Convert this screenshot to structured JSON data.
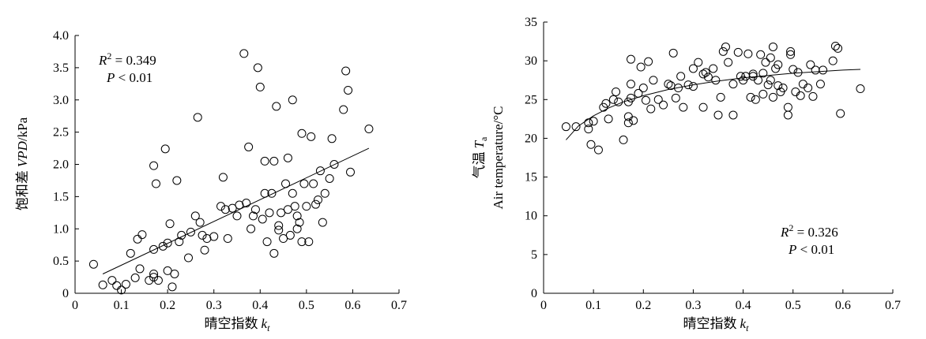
{
  "chart_data": [
    {
      "type": "scatter",
      "x_label_main": "晴空指数",
      "x_label_var": "k",
      "x_label_sub": "t",
      "y_label_main": "饱和差",
      "y_label_var": "VPD",
      "y_label_unit": "/kPa",
      "xlim": [
        0,
        0.7
      ],
      "ylim": [
        0,
        4.0
      ],
      "x_ticks": [
        "0",
        "0.1",
        "0.2",
        "0.3",
        "0.4",
        "0.5",
        "0.6",
        "0.7"
      ],
      "y_ticks": [
        "0",
        "0.5",
        "1.0",
        "1.5",
        "2.0",
        "2.5",
        "3.0",
        "3.5",
        "4.0"
      ],
      "x_tick_values": [
        0,
        0.1,
        0.2,
        0.3,
        0.4,
        0.5,
        0.6,
        0.7
      ],
      "y_tick_values": [
        0,
        0.5,
        1.0,
        1.5,
        2.0,
        2.5,
        3.0,
        3.5,
        4.0
      ],
      "r2_prefix": "R",
      "r2_sup": "2",
      "r2_text": " = 0.349",
      "p_text": "P",
      "p_value_text": " < 0.01",
      "fit": {
        "type": "linear",
        "x": [
          0.06,
          0.635
        ],
        "y": [
          0.3,
          2.25
        ]
      },
      "points": [
        [
          0.04,
          0.45
        ],
        [
          0.06,
          0.13
        ],
        [
          0.08,
          0.2
        ],
        [
          0.09,
          0.12
        ],
        [
          0.1,
          0.05
        ],
        [
          0.11,
          0.14
        ],
        [
          0.12,
          0.62
        ],
        [
          0.13,
          0.24
        ],
        [
          0.135,
          0.84
        ],
        [
          0.14,
          0.38
        ],
        [
          0.145,
          0.91
        ],
        [
          0.16,
          0.2
        ],
        [
          0.17,
          0.3
        ],
        [
          0.17,
          0.68
        ],
        [
          0.175,
          1.7
        ],
        [
          0.17,
          1.98
        ],
        [
          0.18,
          0.2
        ],
        [
          0.19,
          0.73
        ],
        [
          0.195,
          2.24
        ],
        [
          0.2,
          0.78
        ],
        [
          0.205,
          1.08
        ],
        [
          0.21,
          0.1
        ],
        [
          0.215,
          0.3
        ],
        [
          0.22,
          1.75
        ],
        [
          0.225,
          0.8
        ],
        [
          0.23,
          0.9
        ],
        [
          0.245,
          0.55
        ],
        [
          0.25,
          0.95
        ],
        [
          0.26,
          1.2
        ],
        [
          0.265,
          2.73
        ],
        [
          0.27,
          1.1
        ],
        [
          0.275,
          0.9
        ],
        [
          0.28,
          0.67
        ],
        [
          0.285,
          0.85
        ],
        [
          0.3,
          0.88
        ],
        [
          0.315,
          1.35
        ],
        [
          0.32,
          1.8
        ],
        [
          0.325,
          1.3
        ],
        [
          0.33,
          0.85
        ],
        [
          0.34,
          1.32
        ],
        [
          0.35,
          1.2
        ],
        [
          0.355,
          1.37
        ],
        [
          0.365,
          3.72
        ],
        [
          0.37,
          1.4
        ],
        [
          0.375,
          2.27
        ],
        [
          0.38,
          1.0
        ],
        [
          0.385,
          1.2
        ],
        [
          0.39,
          1.3
        ],
        [
          0.395,
          3.5
        ],
        [
          0.4,
          3.2
        ],
        [
          0.405,
          1.15
        ],
        [
          0.41,
          1.55
        ],
        [
          0.41,
          2.05
        ],
        [
          0.415,
          0.8
        ],
        [
          0.42,
          1.25
        ],
        [
          0.425,
          1.55
        ],
        [
          0.43,
          0.62
        ],
        [
          0.435,
          2.9
        ],
        [
          0.44,
          1.05
        ],
        [
          0.445,
          1.25
        ],
        [
          0.45,
          0.85
        ],
        [
          0.455,
          1.7
        ],
        [
          0.46,
          2.1
        ],
        [
          0.46,
          1.3
        ],
        [
          0.465,
          0.9
        ],
        [
          0.47,
          3.0
        ],
        [
          0.47,
          1.55
        ],
        [
          0.475,
          1.35
        ],
        [
          0.48,
          1.0
        ],
        [
          0.485,
          1.1
        ],
        [
          0.49,
          2.48
        ],
        [
          0.49,
          0.8
        ],
        [
          0.495,
          1.7
        ],
        [
          0.5,
          1.35
        ],
        [
          0.505,
          0.8
        ],
        [
          0.51,
          2.43
        ],
        [
          0.515,
          1.7
        ],
        [
          0.52,
          1.38
        ],
        [
          0.525,
          1.45
        ],
        [
          0.53,
          1.9
        ],
        [
          0.535,
          1.1
        ],
        [
          0.54,
          1.55
        ],
        [
          0.55,
          1.78
        ],
        [
          0.555,
          2.4
        ],
        [
          0.56,
          2.0
        ],
        [
          0.58,
          2.85
        ],
        [
          0.585,
          3.45
        ],
        [
          0.59,
          3.15
        ],
        [
          0.595,
          1.88
        ],
        [
          0.635,
          2.55
        ],
        [
          0.17,
          0.25
        ],
        [
          0.2,
          0.35
        ],
        [
          0.43,
          2.05
        ],
        [
          0.44,
          0.98
        ],
        [
          0.48,
          1.2
        ]
      ]
    },
    {
      "type": "scatter",
      "x_label_main": "晴空指数",
      "x_label_var": "k",
      "x_label_sub": "t",
      "y_label_main": "气温",
      "y_label_var": "T",
      "y_label_sub": "a",
      "y_label_en": "Air temperature/°C",
      "xlim": [
        0,
        0.7
      ],
      "ylim": [
        0,
        35
      ],
      "x_ticks": [
        "0",
        "0.1",
        "0.2",
        "0.3",
        "0.4",
        "0.5",
        "0.6",
        "0.7"
      ],
      "y_ticks": [
        "0",
        "5",
        "10",
        "15",
        "20",
        "25",
        "30",
        "35"
      ],
      "x_tick_values": [
        0,
        0.1,
        0.2,
        0.3,
        0.4,
        0.5,
        0.6,
        0.7
      ],
      "y_tick_values": [
        0,
        5,
        10,
        15,
        20,
        25,
        30,
        35
      ],
      "r2_prefix": "R",
      "r2_sup": "2",
      "r2_text": " = 0.326",
      "p_text": "P",
      "p_value_text": " < 0.01",
      "fit": {
        "type": "curve",
        "x": [
          0.045,
          0.07,
          0.1,
          0.13,
          0.16,
          0.2,
          0.25,
          0.3,
          0.35,
          0.4,
          0.45,
          0.5,
          0.55,
          0.6,
          0.635
        ],
        "y": [
          19.8,
          21.6,
          22.9,
          23.9,
          24.7,
          25.5,
          26.3,
          26.9,
          27.4,
          27.8,
          28.1,
          28.4,
          28.6,
          28.8,
          28.9
        ]
      },
      "points": [
        [
          0.045,
          21.5
        ],
        [
          0.065,
          21.5
        ],
        [
          0.09,
          22.0
        ],
        [
          0.09,
          21.2
        ],
        [
          0.095,
          19.2
        ],
        [
          0.11,
          18.5
        ],
        [
          0.12,
          24.0
        ],
        [
          0.125,
          24.5
        ],
        [
          0.13,
          22.5
        ],
        [
          0.14,
          25.0
        ],
        [
          0.145,
          26.0
        ],
        [
          0.16,
          19.8
        ],
        [
          0.17,
          22.8
        ],
        [
          0.17,
          22.0
        ],
        [
          0.17,
          24.7
        ],
        [
          0.175,
          25.2
        ],
        [
          0.175,
          27.0
        ],
        [
          0.175,
          30.2
        ],
        [
          0.18,
          22.3
        ],
        [
          0.19,
          25.8
        ],
        [
          0.195,
          29.2
        ],
        [
          0.2,
          26.5
        ],
        [
          0.205,
          24.9
        ],
        [
          0.21,
          29.9
        ],
        [
          0.215,
          23.8
        ],
        [
          0.22,
          27.5
        ],
        [
          0.23,
          25.0
        ],
        [
          0.25,
          27.0
        ],
        [
          0.255,
          26.8
        ],
        [
          0.26,
          31.0
        ],
        [
          0.265,
          25.2
        ],
        [
          0.27,
          26.5
        ],
        [
          0.275,
          28.0
        ],
        [
          0.28,
          24.0
        ],
        [
          0.29,
          26.9
        ],
        [
          0.3,
          26.7
        ],
        [
          0.31,
          29.8
        ],
        [
          0.32,
          28.3
        ],
        [
          0.32,
          24.0
        ],
        [
          0.325,
          28.5
        ],
        [
          0.33,
          27.9
        ],
        [
          0.34,
          29.0
        ],
        [
          0.345,
          27.5
        ],
        [
          0.35,
          23.0
        ],
        [
          0.355,
          25.3
        ],
        [
          0.36,
          31.2
        ],
        [
          0.365,
          31.8
        ],
        [
          0.37,
          29.8
        ],
        [
          0.38,
          27.0
        ],
        [
          0.38,
          23.0
        ],
        [
          0.39,
          31.1
        ],
        [
          0.395,
          28.0
        ],
        [
          0.4,
          27.5
        ],
        [
          0.405,
          28.0
        ],
        [
          0.41,
          30.9
        ],
        [
          0.415,
          25.3
        ],
        [
          0.42,
          28.0
        ],
        [
          0.425,
          25.0
        ],
        [
          0.43,
          27.5
        ],
        [
          0.435,
          30.8
        ],
        [
          0.44,
          25.7
        ],
        [
          0.44,
          28.4
        ],
        [
          0.445,
          29.8
        ],
        [
          0.45,
          26.9
        ],
        [
          0.455,
          27.5
        ],
        [
          0.455,
          30.4
        ],
        [
          0.46,
          31.8
        ],
        [
          0.465,
          29.0
        ],
        [
          0.47,
          29.5
        ],
        [
          0.47,
          26.8
        ],
        [
          0.475,
          26.0
        ],
        [
          0.48,
          26.5
        ],
        [
          0.49,
          24.0
        ],
        [
          0.49,
          23.0
        ],
        [
          0.495,
          31.2
        ],
        [
          0.495,
          30.8
        ],
        [
          0.5,
          28.9
        ],
        [
          0.505,
          26.0
        ],
        [
          0.51,
          28.5
        ],
        [
          0.515,
          25.5
        ],
        [
          0.52,
          27.0
        ],
        [
          0.53,
          26.5
        ],
        [
          0.535,
          29.5
        ],
        [
          0.54,
          25.4
        ],
        [
          0.545,
          28.8
        ],
        [
          0.555,
          27.0
        ],
        [
          0.56,
          28.8
        ],
        [
          0.58,
          30.0
        ],
        [
          0.585,
          31.9
        ],
        [
          0.59,
          31.6
        ],
        [
          0.595,
          23.2
        ],
        [
          0.635,
          26.4
        ],
        [
          0.1,
          22.2
        ],
        [
          0.15,
          24.7
        ],
        [
          0.24,
          24.3
        ],
        [
          0.3,
          29.0
        ],
        [
          0.42,
          28.3
        ],
        [
          0.46,
          25.3
        ]
      ]
    }
  ]
}
